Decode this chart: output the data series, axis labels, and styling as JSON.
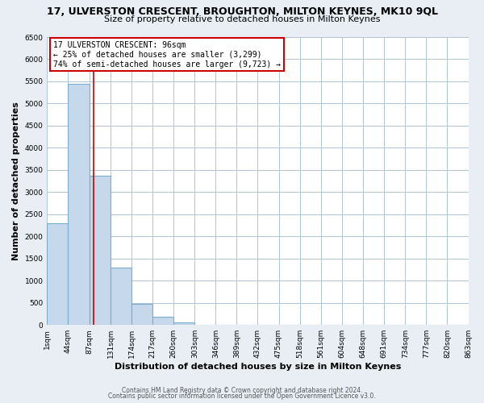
{
  "title": "17, ULVERSTON CRESCENT, BROUGHTON, MILTON KEYNES, MK10 9QL",
  "subtitle": "Size of property relative to detached houses in Milton Keynes",
  "xlabel": "Distribution of detached houses by size in Milton Keynes",
  "ylabel": "Number of detached properties",
  "footer_line1": "Contains HM Land Registry data © Crown copyright and database right 2024.",
  "footer_line2": "Contains public sector information licensed under the Open Government Licence v3.0.",
  "bar_edges": [
    1,
    44,
    87,
    131,
    174,
    217,
    260,
    303,
    346,
    389,
    432,
    475,
    518,
    561,
    604,
    648,
    691,
    734,
    777,
    820,
    863
  ],
  "bar_heights": [
    2300,
    5450,
    3370,
    1290,
    470,
    185,
    65,
    0,
    0,
    0,
    0,
    0,
    0,
    0,
    0,
    0,
    0,
    0,
    0,
    0
  ],
  "tick_labels": [
    "1sqm",
    "44sqm",
    "87sqm",
    "131sqm",
    "174sqm",
    "217sqm",
    "260sqm",
    "303sqm",
    "346sqm",
    "389sqm",
    "432sqm",
    "475sqm",
    "518sqm",
    "561sqm",
    "604sqm",
    "648sqm",
    "691sqm",
    "734sqm",
    "777sqm",
    "820sqm",
    "863sqm"
  ],
  "bar_color": "#c5d8ec",
  "bar_edge_color": "#7aaece",
  "vline_x": 96,
  "vline_color": "#cc0000",
  "annotation_title": "17 ULVERSTON CRESCENT: 96sqm",
  "annotation_line1": "← 25% of detached houses are smaller (3,299)",
  "annotation_line2": "74% of semi-detached houses are larger (9,723) →",
  "annotation_box_facecolor": "white",
  "annotation_box_edgecolor": "#cc0000",
  "ylim": [
    0,
    6500
  ],
  "yticks": [
    0,
    500,
    1000,
    1500,
    2000,
    2500,
    3000,
    3500,
    4000,
    4500,
    5000,
    5500,
    6000,
    6500
  ],
  "fig_bg_color": "#e8eef4",
  "plot_bg_color": "white",
  "grid_color": "#b0c4d8",
  "title_fontsize": 9,
  "subtitle_fontsize": 8,
  "xlabel_fontsize": 8,
  "ylabel_fontsize": 8,
  "tick_fontsize": 6.5,
  "annotation_fontsize": 7,
  "footer_fontsize": 5.5
}
